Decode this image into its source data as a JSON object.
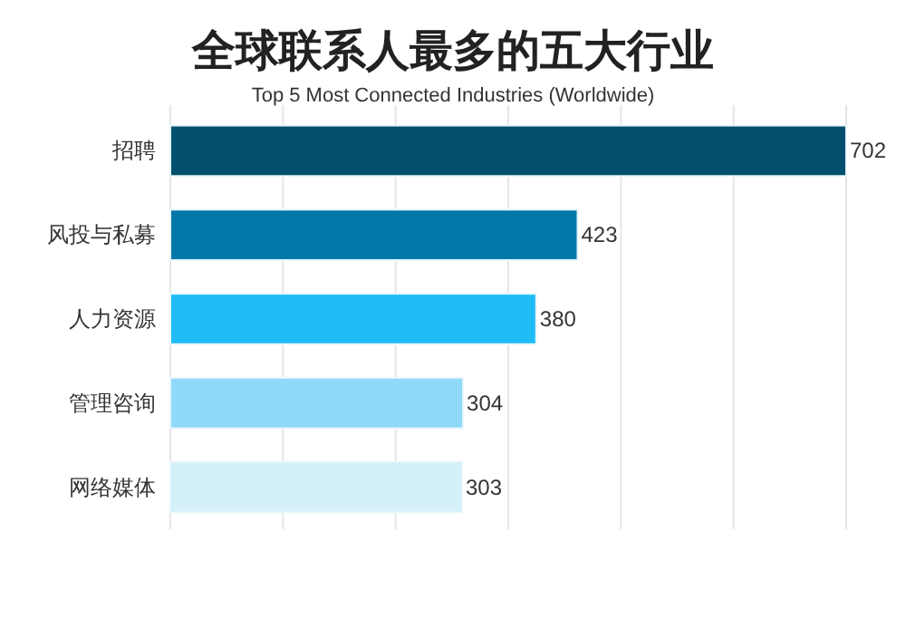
{
  "chart_data": {
    "type": "bar",
    "orientation": "horizontal",
    "title": "全球联系人最多的五大行业",
    "subtitle": "Top 5 Most Connected Industries (Worldwide)",
    "categories": [
      "招聘",
      "风投与私募",
      "人力资源",
      "管理咨询",
      "网络媒体"
    ],
    "values": [
      702,
      423,
      380,
      304,
      303
    ],
    "colors": [
      "#02506e",
      "#0377a8",
      "#1fbcf8",
      "#8fd9fb",
      "#d3f0fb"
    ],
    "xlim": [
      0,
      702
    ],
    "xticks": [
      {
        "value": 0,
        "label": null
      },
      {
        "value": 117,
        "label": null
      },
      {
        "value": 234,
        "label": null
      },
      {
        "value": 351,
        "label": null
      },
      {
        "value": 468,
        "label": null
      },
      {
        "value": 585,
        "label": null
      },
      {
        "value": 702,
        "label": null
      }
    ],
    "grid": "x",
    "data_labels": true
  }
}
